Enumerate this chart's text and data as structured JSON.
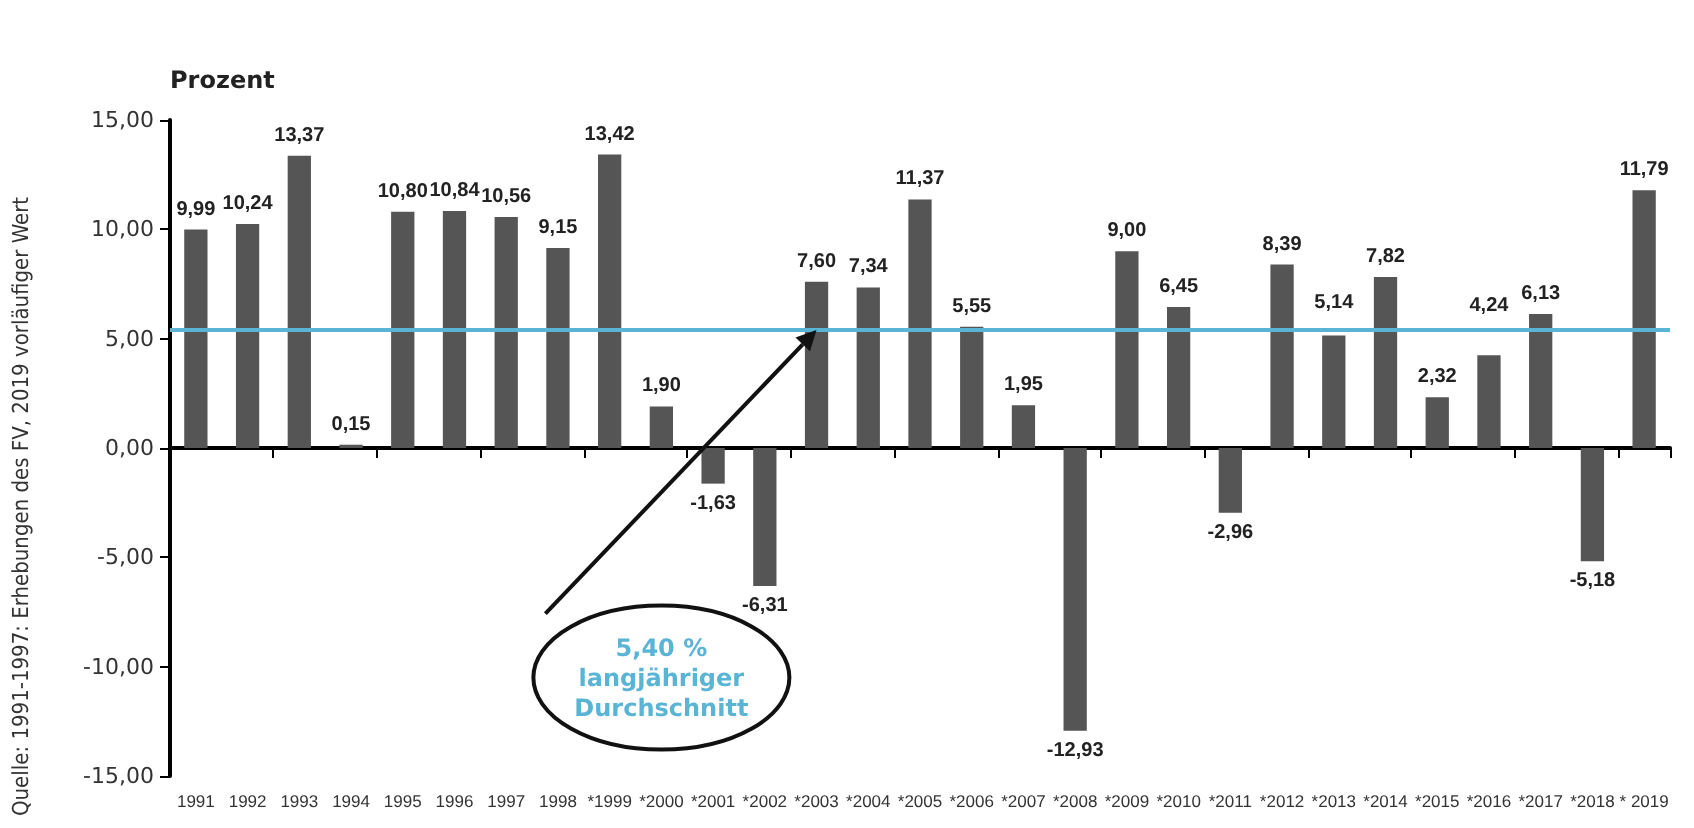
{
  "chart_data": {
    "type": "bar",
    "ylabel": "Prozent",
    "categories": [
      "1991",
      "1992",
      "1993",
      "1994",
      "1995",
      "1996",
      "1997",
      "1998",
      "*1999",
      "*2000",
      "*2001",
      "*2002",
      "*2003",
      "*2004",
      "*2005",
      "*2006",
      "*2007",
      "*2008",
      "*2009",
      "*2010",
      "*2011",
      "*2012",
      "*2013",
      "*2014",
      "*2015",
      "*2016",
      "*2017",
      "*2018",
      "* 2019"
    ],
    "values": [
      9.99,
      10.24,
      13.37,
      0.15,
      10.8,
      10.84,
      10.56,
      9.15,
      13.42,
      1.9,
      -1.63,
      -6.31,
      7.6,
      7.34,
      11.37,
      5.55,
      1.95,
      -12.93,
      9.0,
      6.45,
      -2.96,
      8.39,
      5.14,
      7.82,
      2.32,
      4.24,
      6.13,
      -5.18,
      11.79
    ],
    "value_labels": [
      "9,99",
      "10,24",
      "13,37",
      "0,15",
      "10,80",
      "10,84",
      "10,56",
      "9,15",
      "13,42",
      "1,90",
      "-1,63",
      "-6,31",
      "7,60",
      "7,34",
      "11,37",
      "5,55",
      "1,95",
      "-12,93",
      "9,00",
      "6,45",
      "-2,96",
      "8,39",
      "5,14",
      "7,82",
      "2,32",
      "4,24",
      "6,13",
      "-5,18",
      "11,79"
    ],
    "color": "#555555",
    "ylim": [
      -15,
      15
    ],
    "yticks": [
      {
        "value": -15,
        "label": "-15,00"
      },
      {
        "value": -10,
        "label": "-10,00"
      },
      {
        "value": -5,
        "label": "-5,00"
      },
      {
        "value": 0,
        "label": "0,00"
      },
      {
        "value": 5,
        "label": "5,00"
      },
      {
        "value": 10,
        "label": "10,00"
      },
      {
        "value": 15,
        "label": "15,00"
      }
    ],
    "ref_lines": [
      {
        "axis": "y",
        "value": 5.4,
        "label": "5,40 %\nlangjähriger\nDurchschnitt",
        "color": "#5ab4d6"
      }
    ],
    "annotations": [
      "Quelle: 1991-1997: Erhebungen des FV, 2019 vorläufiger Wert"
    ]
  }
}
